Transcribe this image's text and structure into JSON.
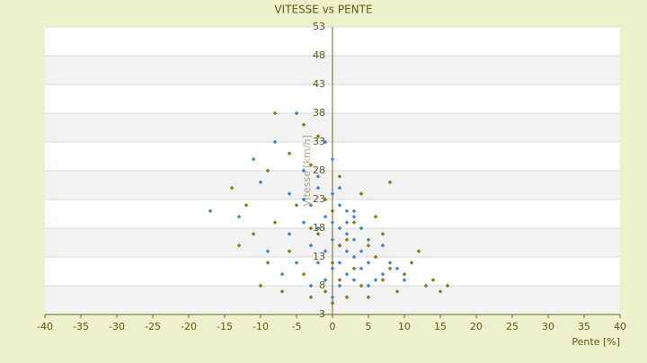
{
  "chart_data": {
    "type": "scatter",
    "title": "VITESSE vs PENTE",
    "x_label": "Pente [%]",
    "y_label": "Vitesse [km/h]",
    "xlim": [
      -40,
      40
    ],
    "xticks": [
      -40,
      -35,
      -30,
      -25,
      -20,
      -15,
      -10,
      -5,
      0,
      5,
      10,
      15,
      20,
      25,
      30,
      35,
      40
    ],
    "ylim": [
      3,
      53
    ],
    "yticks": [
      3,
      8,
      13,
      18,
      23,
      28,
      33,
      38,
      43,
      48,
      53
    ],
    "grid": true,
    "series": [
      {
        "color": "#3c8fd6",
        "x": [
          -17,
          -13,
          -11,
          -10,
          -9,
          -8,
          -7,
          -6,
          -6,
          -5,
          -5,
          -4,
          -4,
          -3,
          -3,
          -3,
          -2,
          -2,
          -2,
          -1,
          -1,
          -1,
          -1,
          0,
          0,
          0,
          0,
          0,
          1,
          1,
          1,
          1,
          1,
          2,
          2,
          2,
          2,
          3,
          3,
          3,
          3,
          4,
          4,
          4,
          5,
          5,
          5,
          6,
          6,
          7,
          7,
          8,
          9,
          10,
          -4,
          -2,
          0,
          2,
          3,
          1
        ],
        "values": [
          21,
          20,
          30,
          26,
          14,
          33,
          10,
          24,
          17,
          38,
          12,
          28,
          19,
          22,
          15,
          8,
          25,
          18,
          12,
          33,
          20,
          14,
          9,
          24,
          19,
          16,
          11,
          6,
          22,
          18,
          15,
          12,
          8,
          21,
          17,
          14,
          10,
          20,
          16,
          13,
          9,
          18,
          14,
          11,
          16,
          12,
          8,
          13,
          9,
          15,
          10,
          12,
          11,
          9,
          23,
          27,
          30,
          19,
          21,
          25
        ]
      },
      {
        "color": "#8a8a00",
        "x": [
          -14,
          -13,
          -12,
          -11,
          -10,
          -9,
          -9,
          -8,
          -8,
          -7,
          -6,
          -6,
          -5,
          -4,
          -4,
          -3,
          -3,
          -2,
          -2,
          -1,
          -1,
          0,
          0,
          0,
          1,
          1,
          2,
          2,
          3,
          3,
          4,
          4,
          5,
          5,
          6,
          6,
          7,
          7,
          8,
          8,
          9,
          10,
          11,
          12,
          13,
          14,
          15,
          16,
          -3,
          1
        ],
        "values": [
          25,
          15,
          22,
          17,
          8,
          28,
          12,
          38,
          19,
          7,
          31,
          14,
          22,
          36,
          10,
          29,
          6,
          17,
          34,
          23,
          7,
          21,
          12,
          5,
          27,
          9,
          16,
          6,
          19,
          11,
          24,
          8,
          15,
          6,
          13,
          20,
          9,
          17,
          11,
          26,
          7,
          10,
          12,
          14,
          8,
          9,
          7,
          8,
          18,
          15
        ]
      }
    ]
  }
}
